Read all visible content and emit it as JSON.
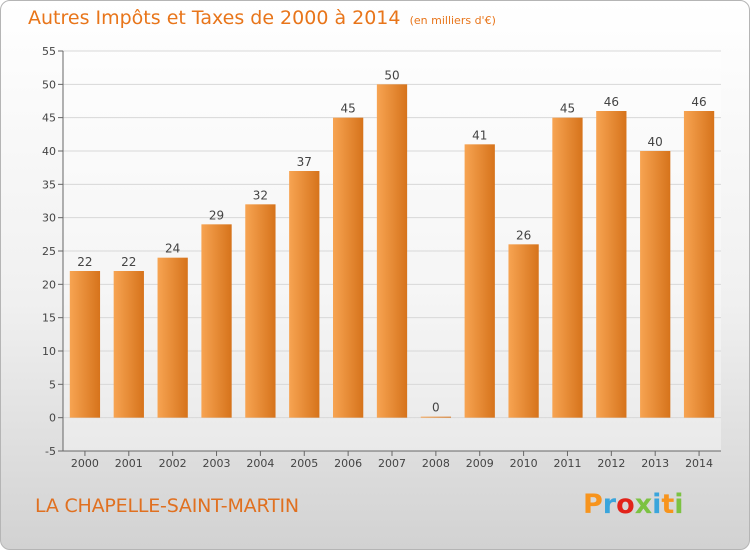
{
  "header": {
    "title": "Autres Impôts et Taxes de 2000 à 2014",
    "unit": "(en milliers d'€)"
  },
  "footer": {
    "commune": "LA CHAPELLE-SAINT-MARTIN",
    "brand": "Proxiti",
    "brand_colors": [
      "#f7941d",
      "#3aa5dc",
      "#e2231a",
      "#7cc242",
      "#3aa5dc",
      "#f7941d",
      "#7cc242"
    ]
  },
  "colors": {
    "bar_light": "#f7a452",
    "bar_dark": "#d6731b",
    "title": "#e8751a",
    "grid": "#d8d8d8",
    "axis": "#666666"
  },
  "chart_data": {
    "type": "bar",
    "title": "Autres Impôts et Taxes de 2000 à 2014",
    "subtitle": "(en milliers d'€)",
    "categories": [
      "2000",
      "2001",
      "2002",
      "2003",
      "2004",
      "2005",
      "2006",
      "2007",
      "2008",
      "2009",
      "2010",
      "2011",
      "2012",
      "2013",
      "2014"
    ],
    "values": [
      22,
      22,
      24,
      29,
      32,
      37,
      45,
      50,
      0,
      41,
      26,
      45,
      46,
      40,
      46
    ],
    "ylim": [
      -5,
      55
    ],
    "yticks": [
      -5,
      0,
      5,
      10,
      15,
      20,
      25,
      30,
      35,
      40,
      45,
      50,
      55
    ],
    "grid": true
  }
}
